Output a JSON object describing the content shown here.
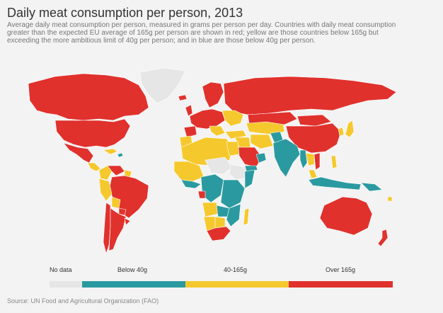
{
  "header": {
    "title": "Daily meat consumption per person, 2013",
    "subtitle": "Average daily meat consumption per person, measured in grams per person per day. Countries with daily meat consumption greater than the expected EU average of 165g per person are shown in red; yellow are those countries below 165g but exceeding the more ambitious limit of 40g per person; and in blue are those below 40g per person."
  },
  "legend": {
    "items": [
      {
        "label": "No data",
        "color": "#e6e6e6"
      },
      {
        "label": "Below 40g",
        "color": "#2a9aa0"
      },
      {
        "label": "40-165g",
        "color": "#f5c92d"
      },
      {
        "label": "Over 165g",
        "color": "#e0312d"
      }
    ]
  },
  "map": {
    "colors": {
      "no_data": "#e6e6e6",
      "below_40g": "#2a9aa0",
      "between_40_165g": "#f5c92d",
      "over_165g": "#e0312d",
      "border": "#ffffff"
    }
  },
  "footer": {
    "source": "Source: UN Food and Agricultural Organization (FAO)"
  }
}
